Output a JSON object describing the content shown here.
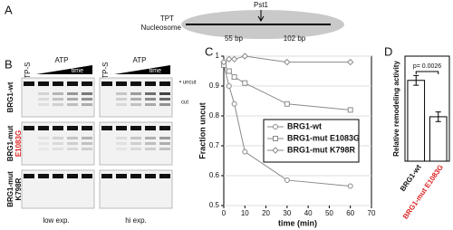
{
  "panel_a": {
    "letter": "A",
    "label_1": "TPT",
    "label_2": "Nucleosome",
    "site": "Pst1",
    "left_arm": "55 bp",
    "right_arm": "102 bp"
  },
  "panel_b": {
    "letter": "B",
    "lane_left": "ATP-S",
    "lane_mid": "ATP",
    "lane_right": "ATP-S",
    "lane_mid_2": "ATP",
    "ramp": "time",
    "ramp_2": "time",
    "rows": [
      [
        "BRG1-wt"
      ],
      [
        "BRG1-mut",
        "E1083G"
      ],
      [
        "BRG1-mut",
        "K798R"
      ]
    ],
    "uncut": "• uncut",
    "cut": "cut",
    "low": "low exp.",
    "high": "hi exp."
  },
  "panel_c_letter": "C",
  "panel_d_letter": "D",
  "chart_data": [
    {
      "type": "line",
      "x_label": "time (min)",
      "y_label": "Fraction uncut",
      "x": [
        0,
        2.5,
        5,
        10,
        30,
        60
      ],
      "series": [
        {
          "name": "BRG1-wt",
          "color": "#8a8a8a",
          "marker": "circle",
          "values": [
            0.97,
            0.9,
            0.84,
            0.68,
            0.585,
            0.565
          ]
        },
        {
          "name": "BRG1-mut E1083G",
          "color": "#8a8a8a",
          "marker": "square",
          "values": [
            0.97,
            0.95,
            0.93,
            0.91,
            0.84,
            0.82
          ]
        },
        {
          "name": "BRG1-mut K798R",
          "color": "#8a8a8a",
          "marker": "diamond",
          "values": [
            0.98,
            0.99,
            0.99,
            1.0,
            0.98,
            0.98
          ]
        }
      ],
      "xlim": [
        0,
        70
      ],
      "xticks": [
        0,
        10,
        20,
        30,
        40,
        50,
        60,
        70
      ],
      "ylim": [
        0.5,
        1
      ],
      "yticks": [
        0.5,
        0.6,
        0.7,
        0.8,
        0.9,
        1
      ],
      "grid": true,
      "legend": "center right"
    },
    {
      "type": "bar",
      "y_label": "Relative remodeling activity",
      "annotation": "p= 0.0026",
      "categories": [
        "BRG1-wt",
        "BRG1-mut E1083G"
      ],
      "values": [
        1.0,
        0.55
      ],
      "errors": [
        0.06,
        0.06
      ],
      "color": "#ffffff",
      "ylim": [
        0,
        1.3
      ]
    }
  ]
}
